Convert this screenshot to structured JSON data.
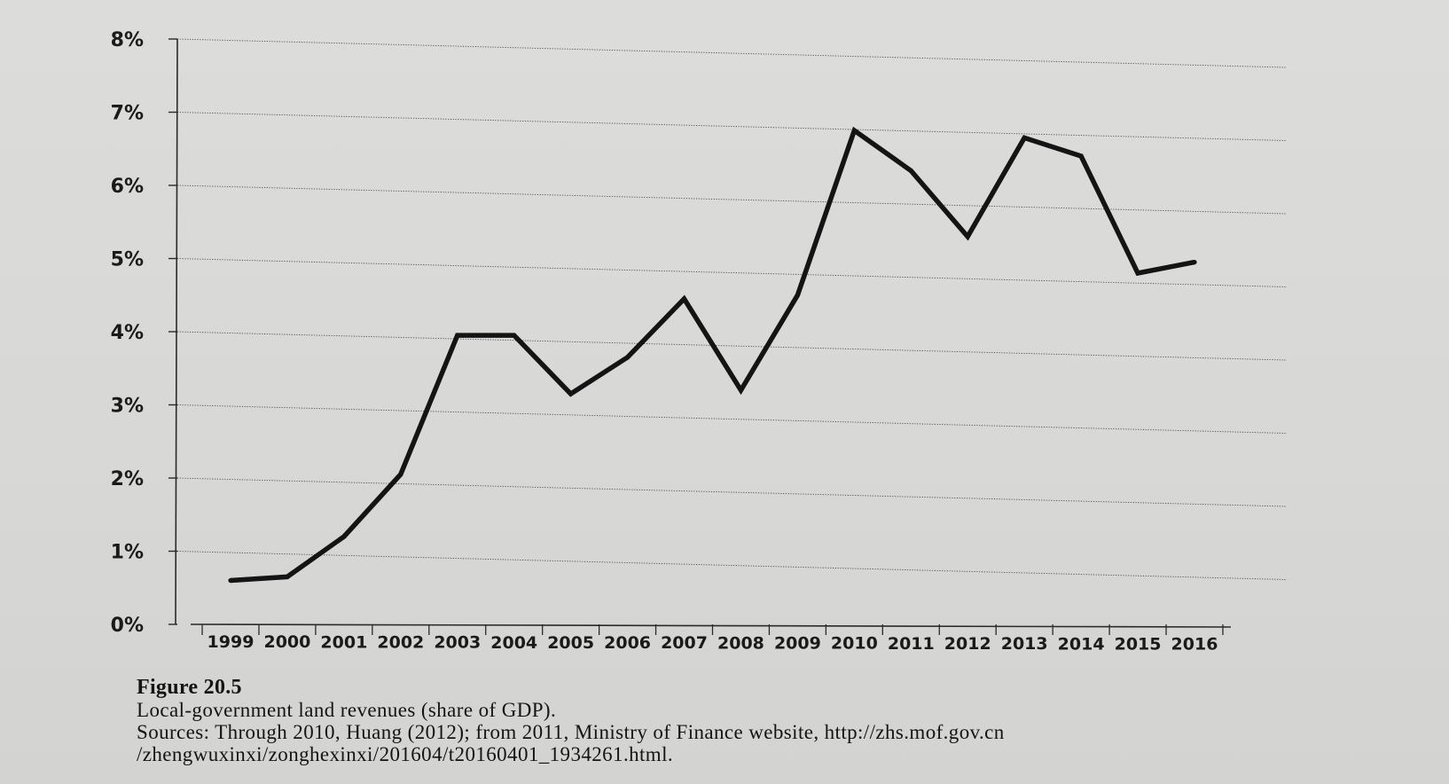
{
  "chart_data": {
    "type": "line",
    "categories": [
      "1999",
      "2000",
      "2001",
      "2002",
      "2003",
      "2004",
      "2005",
      "2006",
      "2007",
      "2008",
      "2009",
      "2010",
      "2011",
      "2012",
      "2013",
      "2014",
      "2015",
      "2016"
    ],
    "series": [
      {
        "values": [
          0.6,
          0.65,
          1.2,
          2.05,
          3.95,
          3.95,
          3.15,
          3.65,
          4.45,
          3.2,
          4.5,
          6.75,
          6.2,
          5.3,
          6.65,
          6.4,
          4.8,
          4.95
        ]
      }
    ],
    "yticks": [
      "0%",
      "1%",
      "2%",
      "3%",
      "4%",
      "5%",
      "6%",
      "7%",
      "8%"
    ],
    "ylim": [
      0,
      8
    ],
    "grid": true,
    "title": "",
    "xlabel": "",
    "ylabel": "",
    "line_color": "#141414"
  },
  "caption": {
    "figure_label": "Figure 20.5",
    "title": "Local-government land revenues (share of GDP).",
    "source_line1": "Sources: Through 2010, Huang (2012); from 2011, Ministry of Finance website, http://zhs.mof.gov.cn",
    "source_line2": "/zhengwuxinxi/zonghexinxi/201604/t20160401_1934261.html."
  }
}
